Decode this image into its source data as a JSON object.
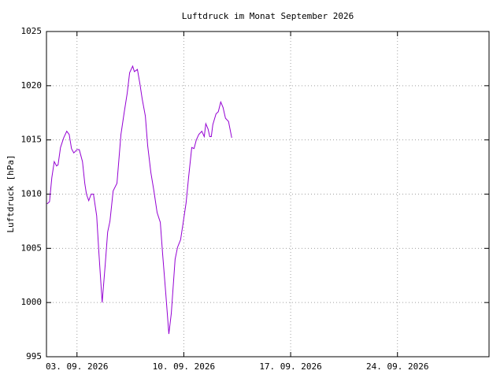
{
  "chart_data": {
    "type": "line",
    "title": "Luftdruck im Monat September 2026",
    "y_label": "Luftdruck [hPa]",
    "x": [
      1.04,
      1.2,
      1.35,
      1.51,
      1.66,
      1.76,
      1.92,
      2.13,
      2.33,
      2.49,
      2.64,
      2.79,
      3.0,
      3.15,
      3.36,
      3.51,
      3.62,
      3.77,
      3.93,
      4.08,
      4.29,
      4.44,
      4.65,
      4.85,
      5.01,
      5.16,
      5.37,
      5.62,
      5.88,
      6.09,
      6.29,
      6.45,
      6.65,
      6.76,
      6.96,
      7.12,
      7.27,
      7.48,
      7.63,
      7.84,
      8.04,
      8.25,
      8.46,
      8.61,
      8.82,
      9.02,
      9.18,
      9.28,
      9.43,
      9.59,
      9.79,
      9.95,
      10.15,
      10.31,
      10.52,
      10.67,
      10.82,
      10.98,
      11.18,
      11.34,
      11.44,
      11.59,
      11.7,
      11.8,
      11.9,
      12.11,
      12.26,
      12.42,
      12.57,
      12.73,
      12.93,
      13.14
    ],
    "series": [
      {
        "name": "Luftdruck",
        "color": "#9400d3",
        "values": [
          1009.1,
          1009.3,
          1011.5,
          1013.0,
          1012.6,
          1012.7,
          1014.3,
          1015.2,
          1015.8,
          1015.5,
          1014.2,
          1013.8,
          1014.1,
          1014.1,
          1013.0,
          1011.0,
          1010.0,
          1009.4,
          1010.0,
          1010.0,
          1008.0,
          1004.5,
          1000.0,
          1003.5,
          1006.5,
          1007.5,
          1010.3,
          1011.0,
          1015.5,
          1017.5,
          1019.3,
          1021.2,
          1021.8,
          1021.3,
          1021.5,
          1020.2,
          1018.8,
          1017.2,
          1014.5,
          1012.0,
          1010.3,
          1008.3,
          1007.4,
          1004.5,
          1000.8,
          997.1,
          999.0,
          1001.0,
          1004.0,
          1005.1,
          1005.8,
          1007.3,
          1009.2,
          1011.5,
          1014.3,
          1014.2,
          1015.0,
          1015.5,
          1015.8,
          1015.3,
          1016.5,
          1016.0,
          1015.3,
          1015.3,
          1016.4,
          1017.4,
          1017.6,
          1018.5,
          1018.0,
          1017.0,
          1016.7,
          1015.2
        ]
      }
    ],
    "xlim": [
      1,
      30
    ],
    "xticks": [
      {
        "value": 3,
        "label": "03. 09. 2026"
      },
      {
        "value": 10,
        "label": "10. 09. 2026"
      },
      {
        "value": 17,
        "label": "17. 09. 2026"
      },
      {
        "value": 24,
        "label": "24. 09. 2026"
      }
    ],
    "ylim": [
      995,
      1025
    ],
    "yticks": [
      995,
      1000,
      1005,
      1010,
      1015,
      1020,
      1025
    ],
    "grid": true
  }
}
